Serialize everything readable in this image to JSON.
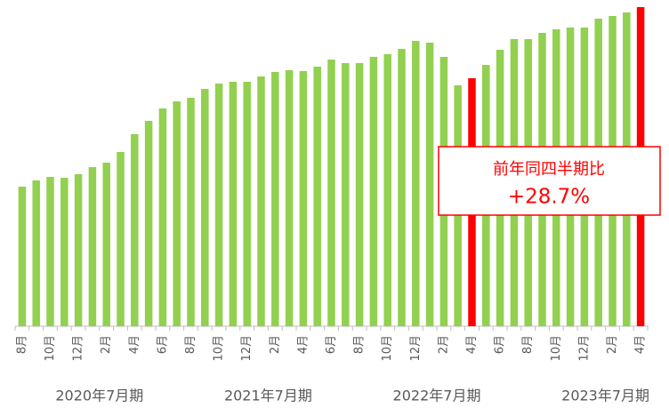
{
  "chart_data": {
    "type": "bar",
    "categories": [
      "8月",
      null,
      "10月",
      null,
      "12月",
      null,
      "2月",
      null,
      "4月",
      null,
      "6月",
      null,
      "8月",
      null,
      "10月",
      null,
      "12月",
      null,
      "2月",
      null,
      "4月",
      null,
      "6月",
      null,
      "8月",
      null,
      "10月",
      null,
      "12月",
      null,
      "2月",
      null,
      "4月",
      null,
      "6月",
      null,
      "8月",
      null,
      "10月",
      null,
      "12月",
      null,
      "2月",
      null,
      "4月"
    ],
    "values": [
      157,
      164,
      168,
      167,
      171,
      179,
      184,
      196,
      216,
      231,
      245,
      253,
      257,
      267,
      273,
      275,
      275,
      281,
      286,
      288,
      287,
      292,
      300,
      296,
      296,
      303,
      306,
      312,
      321,
      319,
      303,
      271,
      279,
      294,
      311,
      323,
      323,
      330,
      334,
      336,
      336,
      346,
      349,
      353,
      359
    ],
    "ylim": [
      0,
      367
    ],
    "color": "#92d050",
    "highlight": {
      "color": "#ff0000",
      "indices": [
        32,
        44
      ]
    },
    "periods": [
      "2020年7月期",
      "2021年7月期",
      "2022年7月期",
      "2023年7月期"
    ],
    "annotation": {
      "lines": [
        "前年同四半期比",
        "+28.7%"
      ],
      "color": "#ff0000"
    }
  }
}
